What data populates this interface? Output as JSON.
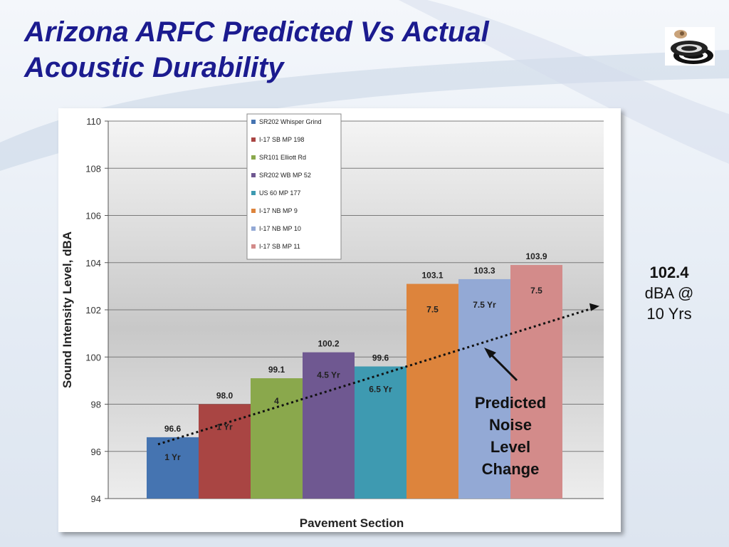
{
  "slide": {
    "title_line1": "Arizona ARFC Predicted Vs Actual",
    "title_line2": "Acoustic Durability",
    "logo_icon": "tire-stack-logo-icon"
  },
  "callouts": {
    "right_value": "102.4",
    "right_unit": "dBA @",
    "right_years": "10 Yrs",
    "predicted_line1": "Predicted",
    "predicted_line2": "Noise",
    "predicted_line3": "Level",
    "predicted_line4": "Change"
  },
  "chart_data": {
    "type": "bar",
    "xlabel": "Pavement Section",
    "ylabel": "Sound Intensity Level, dBA",
    "ylim": [
      94,
      110
    ],
    "yticks": [
      94,
      96,
      98,
      100,
      102,
      104,
      106,
      108,
      110
    ],
    "grid": true,
    "legend_placement": "top-center",
    "series": [
      {
        "name": "SR202 Whisper Grind",
        "value": 96.6,
        "value_label": "96.6",
        "age_label": "1 Yr",
        "color": "#4574b1"
      },
      {
        "name": "I-17 SB MP 198",
        "value": 98.0,
        "value_label": "98.0",
        "age_label": "1 Yr",
        "color": "#a94543"
      },
      {
        "name": "SR101 Elliott Rd",
        "value": 99.1,
        "value_label": "99.1",
        "age_label": "4",
        "color": "#8aa84c"
      },
      {
        "name": "SR202 WB MP 52",
        "value": 100.2,
        "value_label": "100.2",
        "age_label": "4.5 Yr",
        "color": "#6f5891"
      },
      {
        "name": "US 60 MP 177",
        "value": 99.6,
        "value_label": "99.6",
        "age_label": "6.5 Yr",
        "color": "#3e9ab1"
      },
      {
        "name": "I-17 NB MP 9",
        "value": 103.1,
        "value_label": "103.1",
        "age_label": "7.5",
        "color": "#dd843c"
      },
      {
        "name": "I-17 NB MP 10",
        "value": 103.3,
        "value_label": "103.3",
        "age_label": "7.5 Yr",
        "color": "#93a9d5"
      },
      {
        "name": "I-17 SB MP 11",
        "value": 103.9,
        "value_label": "103.9",
        "age_label": "7.5",
        "color": "#d38b8a"
      }
    ],
    "trend_line": {
      "style": "dotted",
      "from_value": 96.3,
      "to_value": 102.1,
      "color": "#111111"
    }
  }
}
